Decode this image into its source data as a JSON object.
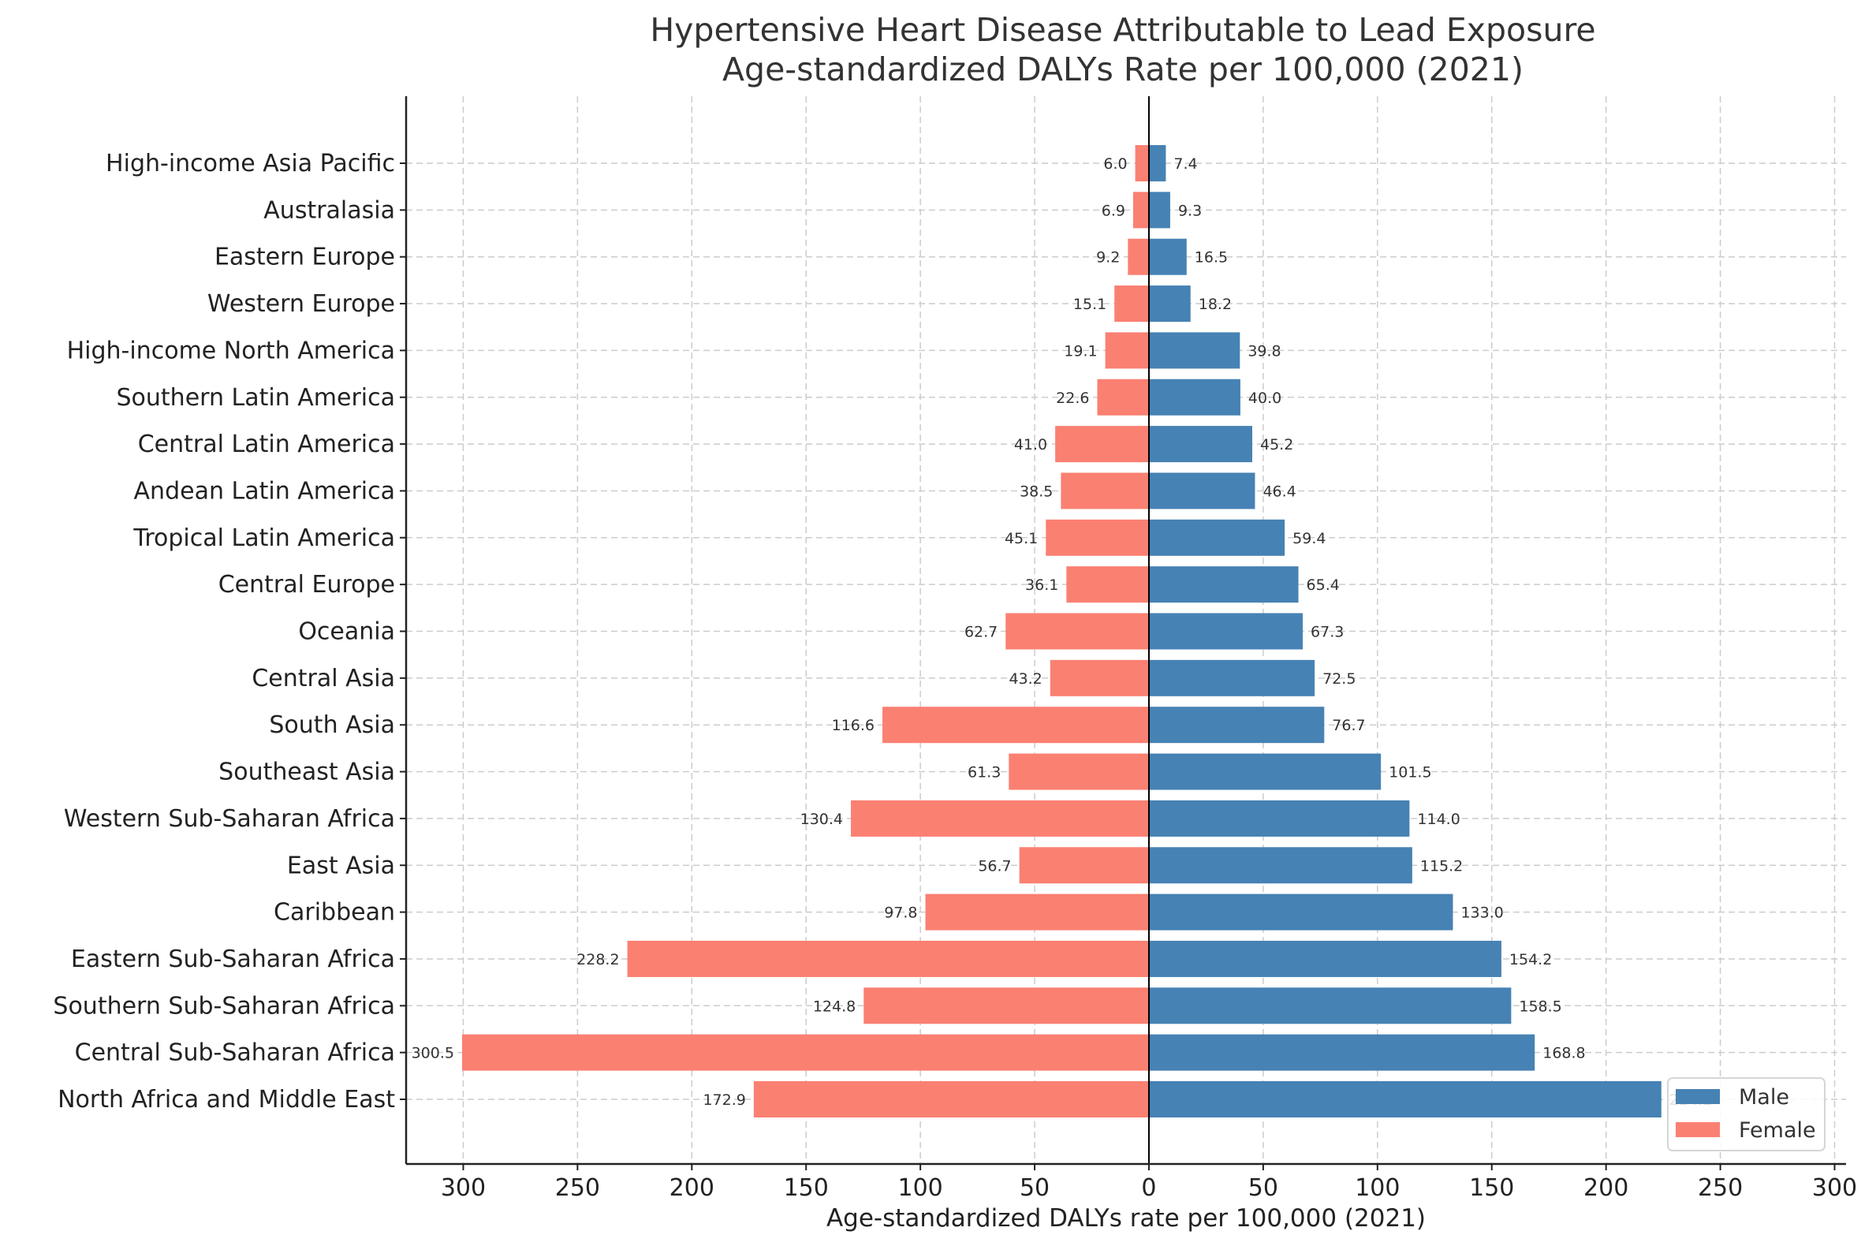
{
  "chart_data": {
    "type": "bar",
    "orientation": "horizontal-diverging",
    "title": "Hypertensive Heart Disease Attributable to Lead Exposure",
    "subtitle": "Age-standardized DALYs Rate per 100,000 (2021)",
    "xlabel": "Age-standardized DALYs rate per 100,000 (2021)",
    "ylabel": "",
    "xlim": [
      -325,
      305
    ],
    "xticks": [
      -300,
      -250,
      -200,
      -150,
      -100,
      -50,
      0,
      50,
      100,
      150,
      200,
      250,
      300
    ],
    "xtick_labels": [
      "300",
      "250",
      "200",
      "150",
      "100",
      "50",
      "0",
      "50",
      "100",
      "150",
      "200",
      "250",
      "300"
    ],
    "grid": true,
    "legend_position": "lower-right",
    "categories": [
      "High-income Asia Pacific",
      "Australasia",
      "Eastern Europe",
      "Western Europe",
      "High-income North America",
      "Southern Latin America",
      "Central Latin America",
      "Andean Latin America",
      "Tropical Latin America",
      "Central Europe",
      "Oceania",
      "Central Asia",
      "South Asia",
      "Southeast Asia",
      "Western Sub-Saharan Africa",
      "East Asia",
      "Caribbean",
      "Eastern Sub-Saharan Africa",
      "Southern Sub-Saharan Africa",
      "Central Sub-Saharan Africa",
      "North Africa and Middle East"
    ],
    "series": [
      {
        "name": "Male",
        "color": "#4682b4",
        "values": [
          7.4,
          9.3,
          16.5,
          18.2,
          39.8,
          40.0,
          45.2,
          46.4,
          59.4,
          65.4,
          67.3,
          72.5,
          76.7,
          101.5,
          114.0,
          115.2,
          133.0,
          154.2,
          158.5,
          168.8,
          224.2
        ],
        "labels": [
          "7.4",
          "9.3",
          "16.5",
          "18.2",
          "39.8",
          "40.0",
          "45.2",
          "46.4",
          "59.4",
          "65.4",
          "67.3",
          "72.5",
          "76.7",
          "101.5",
          "114.0",
          "115.2",
          "133.0",
          "154.2",
          "158.5",
          "168.8",
          "224.2"
        ]
      },
      {
        "name": "Female",
        "color": "#fa8072",
        "values": [
          6.0,
          6.9,
          9.2,
          15.1,
          19.1,
          22.6,
          41.0,
          38.5,
          45.1,
          36.1,
          62.7,
          43.2,
          116.6,
          61.3,
          130.4,
          56.7,
          97.8,
          228.2,
          124.8,
          300.5,
          172.9
        ],
        "labels": [
          "6.0",
          "6.9",
          "9.2",
          "15.1",
          "19.1",
          "22.6",
          "41.0",
          "38.5",
          "45.1",
          "36.1",
          "62.7",
          "43.2",
          "116.6",
          "61.3",
          "130.4",
          "56.7",
          "97.8",
          "228.2",
          "124.8",
          "300.5",
          "172.9"
        ]
      }
    ]
  }
}
